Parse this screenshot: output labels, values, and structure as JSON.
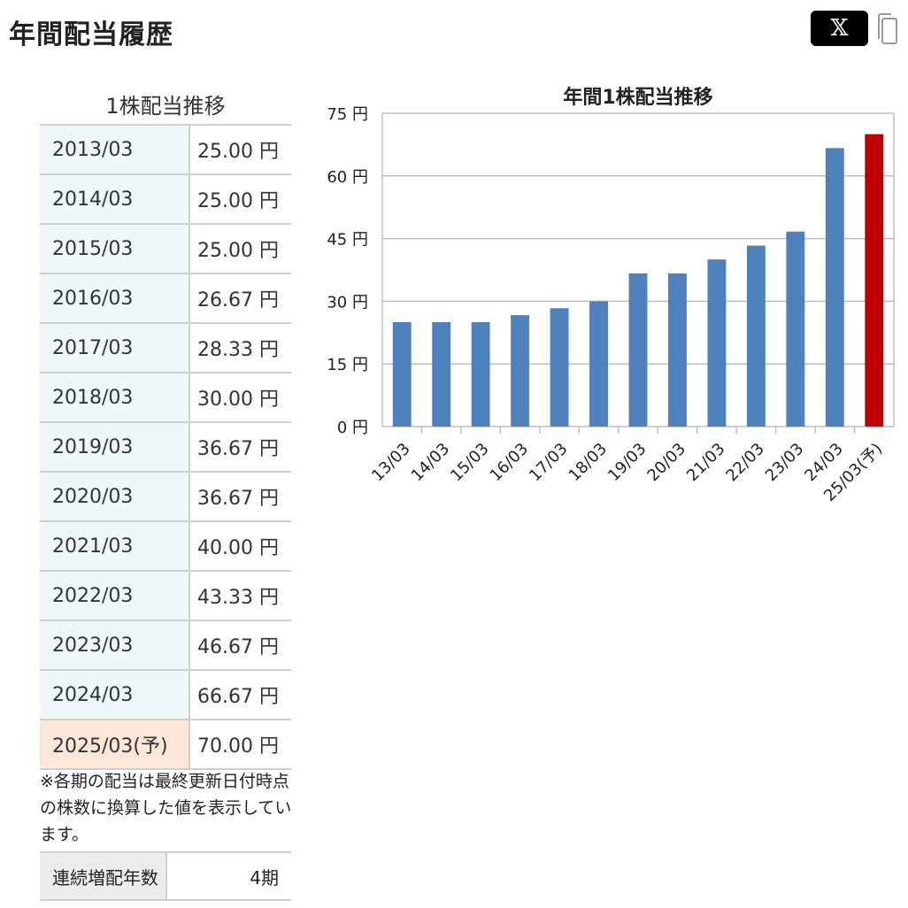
{
  "page": {
    "title": "年間配当履歴",
    "x_button_label": "𝕏",
    "copy_icon": "copy-icon"
  },
  "table": {
    "caption": "1株配当推移",
    "rows": [
      {
        "period": "2013/03",
        "amount": "25.00 円",
        "forecast": false
      },
      {
        "period": "2014/03",
        "amount": "25.00 円",
        "forecast": false
      },
      {
        "period": "2015/03",
        "amount": "25.00 円",
        "forecast": false
      },
      {
        "period": "2016/03",
        "amount": "26.67 円",
        "forecast": false
      },
      {
        "period": "2017/03",
        "amount": "28.33 円",
        "forecast": false
      },
      {
        "period": "2018/03",
        "amount": "30.00 円",
        "forecast": false
      },
      {
        "period": "2019/03",
        "amount": "36.67 円",
        "forecast": false
      },
      {
        "period": "2020/03",
        "amount": "36.67 円",
        "forecast": false
      },
      {
        "period": "2021/03",
        "amount": "40.00 円",
        "forecast": false
      },
      {
        "period": "2022/03",
        "amount": "43.33 円",
        "forecast": false
      },
      {
        "period": "2023/03",
        "amount": "46.67 円",
        "forecast": false
      },
      {
        "period": "2024/03",
        "amount": "66.67 円",
        "forecast": false
      },
      {
        "period": "2025/03(予)",
        "amount": "70.00 円",
        "forecast": true
      }
    ]
  },
  "note": {
    "line1": "※各期の配当は最終更新日付時点",
    "line2": "の株数に換算した値を表示しています。"
  },
  "streak": {
    "label": "連続増配年数",
    "value": "4期"
  },
  "colors": {
    "bar": "#4f81bd",
    "forecast_bar": "#c00000",
    "period_cell": "#eef8f8",
    "forecast_cell": "#fde8d8"
  },
  "chart_data": {
    "type": "bar",
    "title": "年間1株配当推移",
    "categories": [
      "13/03",
      "14/03",
      "15/03",
      "16/03",
      "17/03",
      "18/03",
      "19/03",
      "20/03",
      "21/03",
      "22/03",
      "23/03",
      "24/03",
      "25/03(予)"
    ],
    "values": [
      25.0,
      25.0,
      25.0,
      26.67,
      28.33,
      30.0,
      36.67,
      36.67,
      40.0,
      43.33,
      46.67,
      66.67,
      70.0
    ],
    "forecast_index": 12,
    "ylim": [
      0,
      75
    ],
    "yticks": [
      0,
      15,
      30,
      45,
      60,
      75
    ],
    "yunit": "円",
    "grid": true,
    "legend": false
  }
}
